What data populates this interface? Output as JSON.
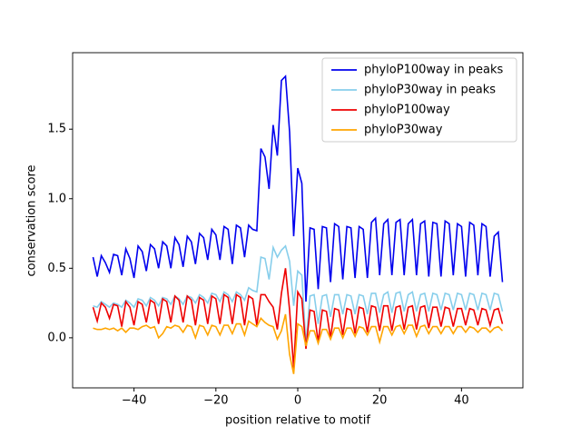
{
  "chart_data": {
    "type": "line",
    "xlabel": "position relative to motif",
    "ylabel": "conservation score",
    "x": [
      -50,
      -49,
      -48,
      -47,
      -46,
      -45,
      -44,
      -43,
      -42,
      -41,
      -40,
      -39,
      -38,
      -37,
      -36,
      -35,
      -34,
      -33,
      -32,
      -31,
      -30,
      -29,
      -28,
      -27,
      -26,
      -25,
      -24,
      -23,
      -22,
      -21,
      -20,
      -19,
      -18,
      -17,
      -16,
      -15,
      -14,
      -13,
      -12,
      -11,
      -10,
      -9,
      -8,
      -7,
      -6,
      -5,
      -4,
      -3,
      -2,
      -1,
      0,
      1,
      2,
      3,
      4,
      5,
      6,
      7,
      8,
      9,
      10,
      11,
      12,
      13,
      14,
      15,
      16,
      17,
      18,
      19,
      20,
      21,
      22,
      23,
      24,
      25,
      26,
      27,
      28,
      29,
      30,
      31,
      32,
      33,
      34,
      35,
      36,
      37,
      38,
      39,
      40,
      41,
      42,
      43,
      44,
      45,
      46,
      47,
      48,
      49,
      50
    ],
    "series": [
      {
        "name": "phyloP100way in peaks",
        "color": "#0000ee",
        "values": [
          0.58,
          0.44,
          0.59,
          0.54,
          0.47,
          0.6,
          0.59,
          0.45,
          0.64,
          0.57,
          0.43,
          0.66,
          0.62,
          0.48,
          0.67,
          0.64,
          0.5,
          0.69,
          0.66,
          0.5,
          0.72,
          0.67,
          0.51,
          0.73,
          0.69,
          0.53,
          0.75,
          0.72,
          0.56,
          0.78,
          0.74,
          0.56,
          0.8,
          0.78,
          0.53,
          0.81,
          0.79,
          0.58,
          0.81,
          0.78,
          0.77,
          1.36,
          1.3,
          1.07,
          1.53,
          1.31,
          1.85,
          1.88,
          1.48,
          0.73,
          1.22,
          1.11,
          0.26,
          0.79,
          0.78,
          0.35,
          0.8,
          0.79,
          0.4,
          0.82,
          0.8,
          0.42,
          0.8,
          0.79,
          0.43,
          0.8,
          0.78,
          0.43,
          0.83,
          0.86,
          0.45,
          0.82,
          0.85,
          0.45,
          0.83,
          0.85,
          0.45,
          0.82,
          0.85,
          0.45,
          0.82,
          0.84,
          0.44,
          0.83,
          0.82,
          0.44,
          0.84,
          0.82,
          0.45,
          0.82,
          0.8,
          0.44,
          0.83,
          0.81,
          0.45,
          0.82,
          0.8,
          0.44,
          0.73,
          0.76,
          0.4
        ]
      },
      {
        "name": "phyloP30way in peaks",
        "color": "#87ceeb",
        "values": [
          0.23,
          0.22,
          0.26,
          0.24,
          0.22,
          0.25,
          0.24,
          0.22,
          0.27,
          0.25,
          0.22,
          0.28,
          0.27,
          0.23,
          0.29,
          0.27,
          0.23,
          0.29,
          0.28,
          0.24,
          0.3,
          0.28,
          0.24,
          0.3,
          0.29,
          0.25,
          0.31,
          0.29,
          0.25,
          0.32,
          0.31,
          0.26,
          0.33,
          0.31,
          0.26,
          0.33,
          0.31,
          0.27,
          0.36,
          0.34,
          0.33,
          0.58,
          0.57,
          0.42,
          0.65,
          0.58,
          0.63,
          0.66,
          0.55,
          0.23,
          0.48,
          0.45,
          -0.05,
          0.3,
          0.31,
          0.1,
          0.3,
          0.31,
          0.15,
          0.31,
          0.31,
          0.17,
          0.31,
          0.3,
          0.17,
          0.31,
          0.3,
          0.17,
          0.32,
          0.32,
          0.18,
          0.31,
          0.33,
          0.18,
          0.32,
          0.33,
          0.19,
          0.31,
          0.33,
          0.19,
          0.31,
          0.32,
          0.19,
          0.32,
          0.31,
          0.2,
          0.32,
          0.31,
          0.2,
          0.32,
          0.31,
          0.2,
          0.32,
          0.31,
          0.2,
          0.32,
          0.31,
          0.2,
          0.32,
          0.31,
          0.19
        ]
      },
      {
        "name": "phyloP100way",
        "color": "#ee0000",
        "values": [
          0.22,
          0.12,
          0.25,
          0.22,
          0.14,
          0.24,
          0.23,
          0.08,
          0.26,
          0.22,
          0.09,
          0.26,
          0.24,
          0.11,
          0.27,
          0.25,
          0.1,
          0.28,
          0.26,
          0.11,
          0.3,
          0.27,
          0.11,
          0.3,
          0.27,
          0.09,
          0.29,
          0.27,
          0.1,
          0.3,
          0.28,
          0.1,
          0.31,
          0.29,
          0.1,
          0.31,
          0.29,
          0.09,
          0.3,
          0.28,
          0.09,
          0.31,
          0.31,
          0.26,
          0.22,
          0.06,
          0.32,
          0.5,
          0.2,
          -0.22,
          0.33,
          0.28,
          -0.08,
          0.2,
          0.19,
          -0.03,
          0.2,
          0.19,
          0.0,
          0.21,
          0.2,
          0.02,
          0.21,
          0.2,
          0.03,
          0.22,
          0.21,
          0.04,
          0.23,
          0.22,
          0.05,
          0.23,
          0.23,
          0.05,
          0.22,
          0.23,
          0.06,
          0.22,
          0.23,
          0.06,
          0.22,
          0.23,
          0.07,
          0.22,
          0.22,
          0.08,
          0.22,
          0.21,
          0.08,
          0.21,
          0.21,
          0.09,
          0.21,
          0.2,
          0.09,
          0.21,
          0.2,
          0.09,
          0.2,
          0.21,
          0.1
        ]
      },
      {
        "name": "phyloP30way",
        "color": "#ffa500",
        "values": [
          0.07,
          0.06,
          0.06,
          0.07,
          0.06,
          0.07,
          0.05,
          0.07,
          0.04,
          0.07,
          0.07,
          0.06,
          0.08,
          0.09,
          0.07,
          0.08,
          0.0,
          0.03,
          0.08,
          0.07,
          0.09,
          0.08,
          0.04,
          0.09,
          0.08,
          0.0,
          0.09,
          0.08,
          0.02,
          0.09,
          0.08,
          0.02,
          0.09,
          0.09,
          0.03,
          0.1,
          0.1,
          0.02,
          0.12,
          0.1,
          0.08,
          0.14,
          0.11,
          0.09,
          0.08,
          -0.01,
          0.05,
          0.17,
          -0.12,
          -0.26,
          0.1,
          0.08,
          -0.06,
          0.05,
          0.05,
          -0.04,
          0.06,
          0.06,
          -0.01,
          0.07,
          0.07,
          0.0,
          0.07,
          0.07,
          0.01,
          0.08,
          0.07,
          0.02,
          0.08,
          0.08,
          -0.03,
          0.08,
          0.08,
          0.02,
          0.08,
          0.09,
          0.03,
          0.09,
          0.09,
          0.01,
          0.08,
          0.09,
          0.03,
          0.08,
          0.08,
          0.03,
          0.08,
          0.08,
          0.03,
          0.08,
          0.08,
          0.04,
          0.08,
          0.07,
          0.04,
          0.07,
          0.07,
          0.04,
          0.07,
          0.08,
          0.05
        ]
      }
    ],
    "xlim": [
      -55,
      55
    ],
    "ylim": [
      -0.36,
      2.05
    ],
    "xticks": [
      {
        "value": -40,
        "label": "−40"
      },
      {
        "value": -20,
        "label": "−20"
      },
      0,
      20,
      40
    ],
    "yticks": [
      {
        "value": 0,
        "label": "0.0"
      },
      0.5,
      {
        "value": 1,
        "label": "1.0"
      },
      1.5
    ],
    "legend": "upper right"
  }
}
